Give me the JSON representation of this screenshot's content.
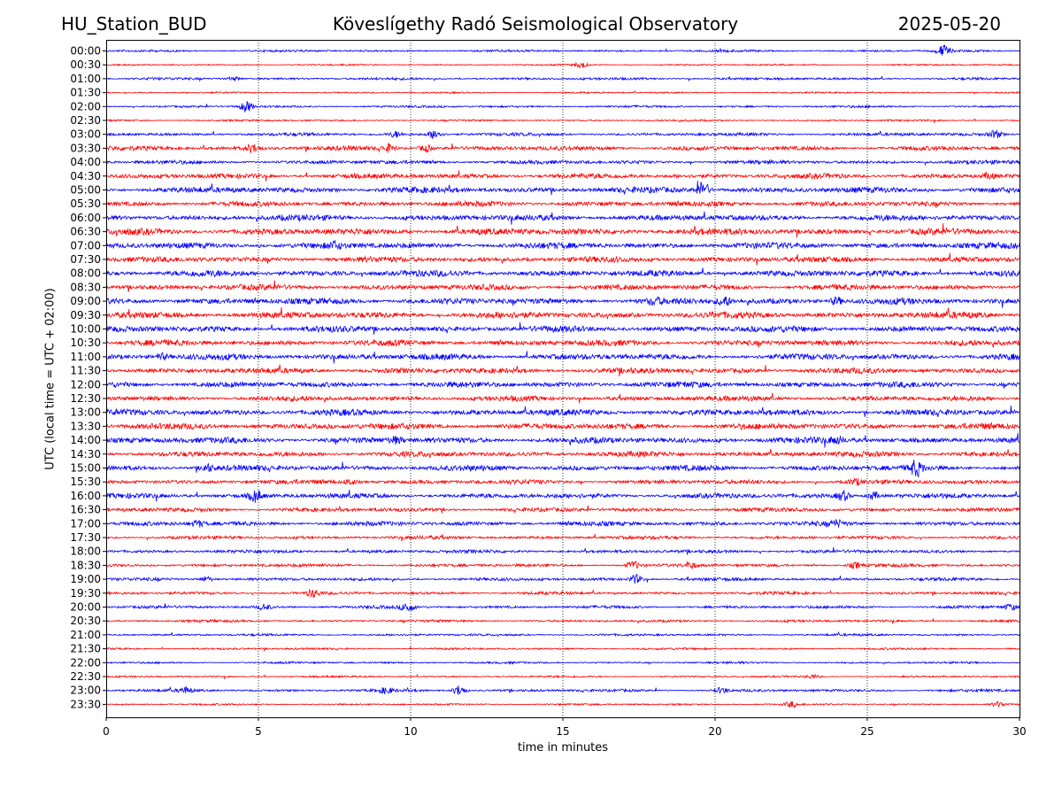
{
  "header": {
    "station": "HU_Station_BUD",
    "observatory": "Köveslígethy Radó Seismological Observatory",
    "date": "2025-05-20"
  },
  "chart_data": {
    "type": "line",
    "title": "Köveslígethy Radó Seismological Observatory",
    "xlabel": "time in minutes",
    "ylabel": "UTC (local time = UTC + 02:00)",
    "xlim": [
      0,
      30
    ],
    "x_ticks": [
      "0",
      "5",
      "10",
      "15",
      "20",
      "25",
      "30"
    ],
    "x_grid": "dotted vertical lines at each x tick",
    "trace_colors": [
      "#0000ff",
      "#ff0000"
    ],
    "trace_color_rule": "alternating blue (full hour) / red (half hour)",
    "rows": [
      {
        "label": "00:00",
        "level": 1.0,
        "events": [
          [
            27.5,
            6
          ]
        ]
      },
      {
        "label": "00:30",
        "level": 0.7,
        "events": [
          [
            15.6,
            3
          ]
        ]
      },
      {
        "label": "01:00",
        "level": 1.1,
        "events": [
          [
            4.2,
            2
          ]
        ]
      },
      {
        "label": "01:30",
        "level": 0.7,
        "events": []
      },
      {
        "label": "02:00",
        "level": 1.0,
        "events": [
          [
            4.6,
            6
          ]
        ]
      },
      {
        "label": "02:30",
        "level": 0.8,
        "events": []
      },
      {
        "label": "03:00",
        "level": 1.4,
        "events": [
          [
            10.8,
            5
          ],
          [
            29.2,
            4
          ],
          [
            9.5,
            3
          ]
        ]
      },
      {
        "label": "03:30",
        "level": 2.0,
        "events": [
          [
            4.8,
            4
          ],
          [
            9.3,
            4
          ],
          [
            10.5,
            4
          ]
        ]
      },
      {
        "label": "04:00",
        "level": 1.7,
        "events": []
      },
      {
        "label": "04:30",
        "level": 2.2,
        "events": [
          [
            29.0,
            3
          ]
        ]
      },
      {
        "label": "05:00",
        "level": 2.6,
        "events": [
          [
            19.6,
            9
          ]
        ]
      },
      {
        "label": "05:30",
        "level": 2.3,
        "events": []
      },
      {
        "label": "06:00",
        "level": 2.6,
        "events": []
      },
      {
        "label": "06:30",
        "level": 2.9,
        "events": []
      },
      {
        "label": "07:00",
        "level": 2.7,
        "events": [
          [
            7.5,
            3
          ]
        ]
      },
      {
        "label": "07:30",
        "level": 2.5,
        "events": []
      },
      {
        "label": "08:00",
        "level": 2.8,
        "events": []
      },
      {
        "label": "08:30",
        "level": 2.5,
        "events": []
      },
      {
        "label": "09:00",
        "level": 2.8,
        "events": [
          [
            20.3,
            5
          ],
          [
            24.0,
            4
          ],
          [
            18.0,
            3
          ]
        ]
      },
      {
        "label": "09:30",
        "level": 2.9,
        "events": []
      },
      {
        "label": "10:00",
        "level": 2.8,
        "events": []
      },
      {
        "label": "10:30",
        "level": 2.6,
        "events": []
      },
      {
        "label": "11:00",
        "level": 2.7,
        "events": [
          [
            1.8,
            3
          ]
        ]
      },
      {
        "label": "11:30",
        "level": 2.5,
        "events": []
      },
      {
        "label": "12:00",
        "level": 2.6,
        "events": []
      },
      {
        "label": "12:30",
        "level": 2.3,
        "events": []
      },
      {
        "label": "13:00",
        "level": 2.7,
        "events": []
      },
      {
        "label": "13:30",
        "level": 2.7,
        "events": []
      },
      {
        "label": "14:00",
        "level": 2.7,
        "events": [
          [
            9.5,
            3
          ],
          [
            24.0,
            3
          ]
        ]
      },
      {
        "label": "14:30",
        "level": 2.4,
        "events": []
      },
      {
        "label": "15:00",
        "level": 2.5,
        "events": [
          [
            26.6,
            8
          ],
          [
            3.3,
            4
          ]
        ]
      },
      {
        "label": "15:30",
        "level": 2.0,
        "events": [
          [
            8.0,
            3
          ],
          [
            24.6,
            3
          ]
        ]
      },
      {
        "label": "16:00",
        "level": 2.2,
        "events": [
          [
            4.9,
            6
          ],
          [
            24.2,
            5
          ],
          [
            25.2,
            4
          ]
        ]
      },
      {
        "label": "16:30",
        "level": 1.8,
        "events": []
      },
      {
        "label": "17:00",
        "level": 2.0,
        "events": [
          [
            3.0,
            3
          ],
          [
            24.0,
            3
          ]
        ]
      },
      {
        "label": "17:30",
        "level": 1.5,
        "events": []
      },
      {
        "label": "18:00",
        "level": 1.5,
        "events": []
      },
      {
        "label": "18:30",
        "level": 1.4,
        "events": [
          [
            17.3,
            4
          ],
          [
            24.6,
            3
          ],
          [
            19.2,
            3
          ]
        ]
      },
      {
        "label": "19:00",
        "level": 1.4,
        "events": [
          [
            17.4,
            5
          ],
          [
            3.3,
            3
          ]
        ]
      },
      {
        "label": "19:30",
        "level": 1.3,
        "events": [
          [
            6.8,
            4
          ]
        ]
      },
      {
        "label": "20:00",
        "level": 1.3,
        "events": [
          [
            9.9,
            5
          ],
          [
            5.2,
            3
          ],
          [
            29.7,
            3
          ]
        ]
      },
      {
        "label": "20:30",
        "level": 1.1,
        "events": []
      },
      {
        "label": "21:00",
        "level": 1.0,
        "events": []
      },
      {
        "label": "21:30",
        "level": 0.9,
        "events": []
      },
      {
        "label": "22:00",
        "level": 0.9,
        "events": []
      },
      {
        "label": "22:30",
        "level": 0.8,
        "events": [
          [
            23.2,
            2
          ]
        ]
      },
      {
        "label": "23:00",
        "level": 1.2,
        "events": [
          [
            11.6,
            6
          ],
          [
            9.2,
            3
          ],
          [
            20.2,
            3
          ],
          [
            2.6,
            3
          ]
        ]
      },
      {
        "label": "23:30",
        "level": 0.8,
        "events": [
          [
            22.5,
            3
          ],
          [
            29.3,
            3
          ]
        ]
      }
    ]
  }
}
